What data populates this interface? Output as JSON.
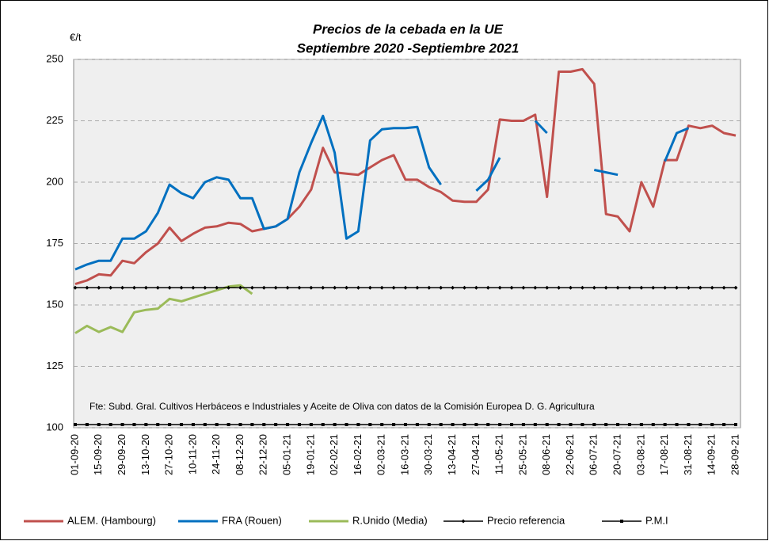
{
  "chart_data": {
    "type": "line",
    "title": "Precios de la cebada en la UE",
    "subtitle": "Septiembre 2020 -Septiembre 2021",
    "y_label": "€/t",
    "annotation": "Fte: Subd. Gral. Cultivos Herbáceos e Industriales y Aceite de Oliva con datos de la Comisión Europea D. G. Agricultura",
    "categories": [
      "01-09-20",
      null,
      "15-09-20",
      null,
      "29-09-20",
      null,
      "13-10-20",
      null,
      "27-10-20",
      null,
      "10-11-20",
      null,
      "24-11-20",
      null,
      "08-12-20",
      null,
      "22-12-20",
      null,
      "05-01-21",
      null,
      "19-01-21",
      null,
      "02-02-21",
      null,
      "16-02-21",
      null,
      "02-03-21",
      null,
      "16-03-21",
      null,
      "30-03-21",
      null,
      "13-04-21",
      null,
      "27-04-21",
      null,
      "11-05-21",
      null,
      "25-05-21",
      null,
      "08-06-21",
      null,
      "22-06-21",
      null,
      "06-07-21",
      null,
      "20-07-21",
      null,
      "03-08-21",
      null,
      "17-08-21",
      null,
      "31-08-21",
      null,
      "14-09-21",
      null,
      "28-09-21"
    ],
    "ylim": [
      100,
      250
    ],
    "yticks": [
      100,
      125,
      150,
      175,
      200,
      225,
      250
    ],
    "grid": true,
    "legend": "bottom",
    "series": [
      {
        "name": "ALEM. (Hambourg)",
        "color": "#c0504d",
        "marker": null,
        "values": [
          158.5,
          160,
          162.5,
          162,
          168,
          167,
          171.5,
          175,
          181.5,
          176,
          179,
          181.5,
          182,
          183.5,
          183,
          180,
          181,
          182,
          185,
          190,
          197,
          214,
          204,
          203.5,
          203,
          206,
          209,
          211,
          201,
          201,
          198,
          196,
          192.5,
          192,
          192,
          197,
          225.5,
          225,
          225,
          227.5,
          194,
          245,
          245,
          246,
          240,
          187,
          186,
          180,
          200,
          190,
          209,
          209,
          223,
          222,
          223,
          220,
          219
        ]
      },
      {
        "name": "FRA (Rouen)",
        "color": "#0070c0",
        "marker": null,
        "values": [
          164.5,
          166.5,
          168,
          168,
          177,
          177,
          180,
          187.5,
          199,
          195.5,
          193.5,
          200,
          202,
          201,
          193.5,
          193.5,
          181,
          182,
          185,
          204,
          216,
          227,
          212,
          177,
          180,
          217,
          221.5,
          222,
          222,
          222.5,
          206,
          199,
          null,
          null,
          196.5,
          201,
          210,
          null,
          null,
          225,
          220,
          null,
          null,
          null,
          205,
          204,
          203,
          null,
          null,
          null,
          208.5,
          220,
          222,
          null,
          null,
          null,
          null
        ]
      },
      {
        "name": "R.Unido (Media)",
        "color": "#9bbb59",
        "marker": null,
        "values": [
          138.5,
          141.5,
          139,
          141,
          139,
          147,
          148,
          148.5,
          152.5,
          151.5,
          153,
          154.5,
          156,
          157.5,
          158,
          154.5,
          null,
          null,
          null,
          null,
          null,
          null,
          null,
          null,
          null,
          null,
          null,
          null,
          null,
          null,
          null,
          null,
          null,
          null,
          null,
          null,
          null,
          null,
          null,
          null,
          null,
          null,
          null,
          null,
          null,
          null,
          null,
          null,
          null,
          null,
          null,
          null,
          null,
          null,
          null,
          null,
          null
        ]
      },
      {
        "name": "Precio referencia",
        "color": "#000000",
        "marker": "diamond",
        "values": [
          157,
          157,
          157,
          157,
          157,
          157,
          157,
          157,
          157,
          157,
          157,
          157,
          157,
          157,
          157,
          157,
          157,
          157,
          157,
          157,
          157,
          157,
          157,
          157,
          157,
          157,
          157,
          157,
          157,
          157,
          157,
          157,
          157,
          157,
          157,
          157,
          157,
          157,
          157,
          157,
          157,
          157,
          157,
          157,
          157,
          157,
          157,
          157,
          157,
          157,
          157,
          157,
          157,
          157,
          157,
          157,
          157
        ]
      },
      {
        "name": "P.M.I",
        "color": "#000000",
        "marker": "square",
        "values": [
          101.3,
          101.3,
          101.3,
          101.3,
          101.3,
          101.3,
          101.3,
          101.3,
          101.3,
          101.3,
          101.3,
          101.3,
          101.3,
          101.3,
          101.3,
          101.3,
          101.3,
          101.3,
          101.3,
          101.3,
          101.3,
          101.3,
          101.3,
          101.3,
          101.3,
          101.3,
          101.3,
          101.3,
          101.3,
          101.3,
          101.3,
          101.3,
          101.3,
          101.3,
          101.3,
          101.3,
          101.3,
          101.3,
          101.3,
          101.3,
          101.3,
          101.3,
          101.3,
          101.3,
          101.3,
          101.3,
          101.3,
          101.3,
          101.3,
          101.3,
          101.3,
          101.3,
          101.3,
          101.3,
          101.3,
          101.3,
          101.3
        ]
      }
    ]
  }
}
